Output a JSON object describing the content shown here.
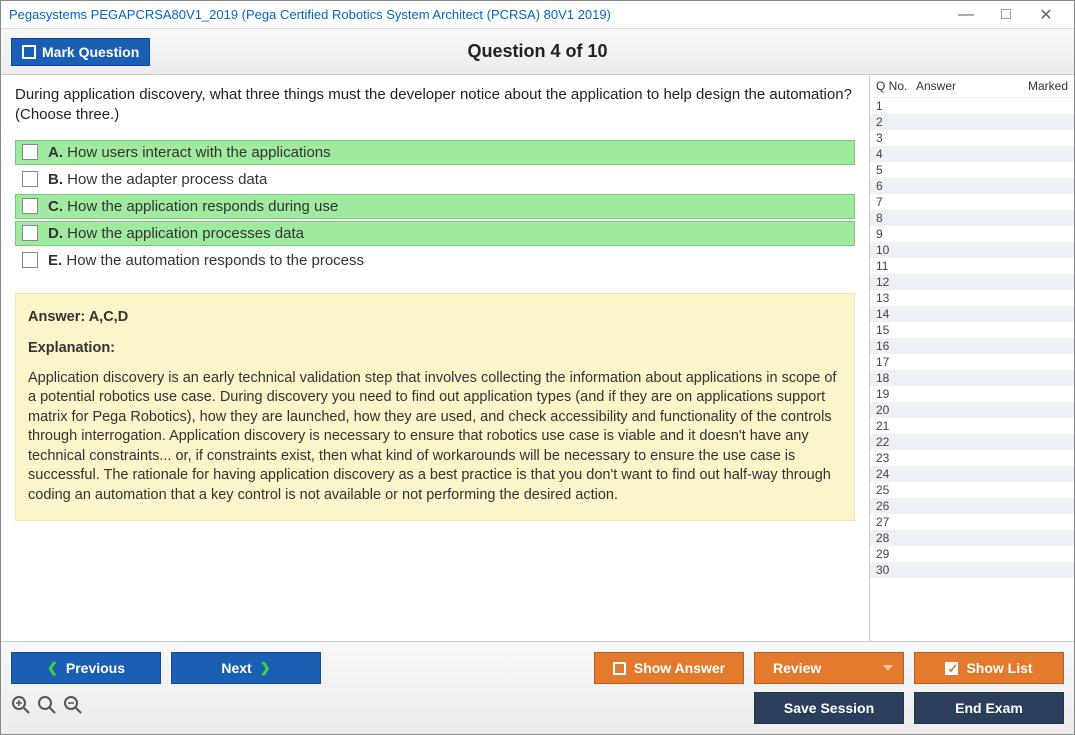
{
  "window": {
    "title": "Pegasystems PEGAPCRSA80V1_2019 (Pega Certified Robotics System Architect (PCRSA) 80V1 2019)"
  },
  "header": {
    "mark_label": "Mark Question",
    "question_title": "Question 4 of 10"
  },
  "question": {
    "prompt": "During application discovery, what three things must the developer notice about the application to help design the automation? (Choose three.)",
    "options": [
      {
        "letter": "A.",
        "text": "How users interact with the applications",
        "correct": true
      },
      {
        "letter": "B.",
        "text": "How the adapter process data",
        "correct": false
      },
      {
        "letter": "C.",
        "text": "How the application responds during use",
        "correct": true
      },
      {
        "letter": "D.",
        "text": "How the application processes data",
        "correct": true
      },
      {
        "letter": "E.",
        "text": "How the automation responds to the process",
        "correct": false
      }
    ],
    "answer_label": "Answer: A,C,D",
    "explanation_heading": "Explanation:",
    "explanation_text": "Application discovery is an early technical validation step that involves collecting the information about applications in scope of a potential robotics use case. During discovery you need to find out application types (and if they are on applications support matrix for Pega Robotics), how they are launched, how they are used, and check accessibility and functionality of the controls through interrogation. Application discovery is necessary to ensure that robotics use case is viable and it doesn't have any technical constraints... or, if constraints exist, then what kind of workarounds will be necessary to ensure the use case is successful. The rationale for having application discovery as a best practice is that you don't want to find out half-way through coding an automation that a key control is not available or not performing the desired action."
  },
  "sidebar": {
    "col_qno": "Q No.",
    "col_answer": "Answer",
    "col_marked": "Marked",
    "row_count": 30
  },
  "footer": {
    "previous": "Previous",
    "next": "Next",
    "show_answer": "Show Answer",
    "review": "Review",
    "show_list": "Show List",
    "save_session": "Save Session",
    "end_exam": "End Exam"
  },
  "colors": {
    "blue_btn": "#1b5fb5",
    "orange_btn": "#e47a2e",
    "navy_btn": "#2b3e5c",
    "correct_bg": "#a0eaa0",
    "explain_bg": "#fbf5c9",
    "sidebar_even": "#edf1f7"
  }
}
